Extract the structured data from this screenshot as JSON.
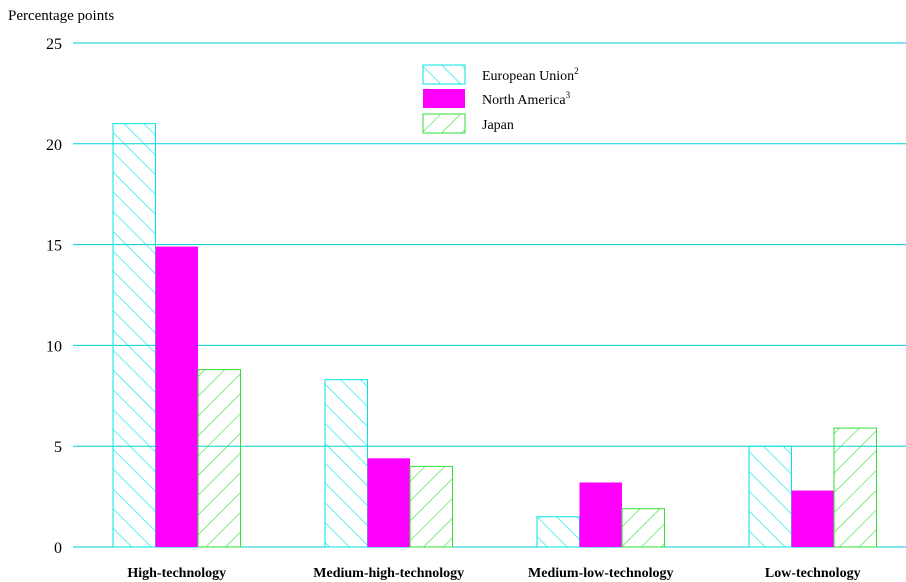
{
  "chart_data": {
    "type": "bar",
    "ylabel": "Percentage points",
    "ylim": [
      0,
      25
    ],
    "yticks": [
      0,
      5,
      10,
      15,
      20,
      25
    ],
    "grid": true,
    "legend_position": "top-center",
    "categories": [
      "High-technology",
      "Medium-high-technology",
      "Medium-low-technology",
      "Low-technology"
    ],
    "series": [
      {
        "name": "European Union",
        "footnote": "2",
        "color": "#00e5e5",
        "fill": "hatch-backslash",
        "values": [
          21.0,
          8.3,
          1.5,
          5.0
        ]
      },
      {
        "name": "North America",
        "footnote": "3",
        "color": "#ff00ff",
        "fill": "solid",
        "values": [
          14.9,
          4.4,
          3.2,
          2.8
        ]
      },
      {
        "name": "Japan",
        "footnote": "",
        "color": "#33dd33",
        "fill": "hatch-slash",
        "values": [
          8.8,
          4.0,
          1.9,
          5.9
        ]
      }
    ]
  }
}
